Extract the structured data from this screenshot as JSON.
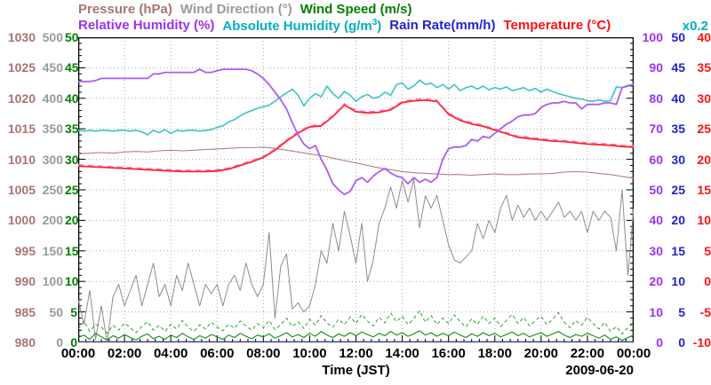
{
  "header": {
    "row1": [
      {
        "parts": [
          {
            "t": "Pressure (hPa)"
          }
        ],
        "color": "#A87474"
      },
      {
        "parts": [
          {
            "t": "Wind Direction (°)"
          }
        ],
        "color": "#9A9A9A"
      },
      {
        "parts": [
          {
            "t": "Wind Speed (m/s)"
          }
        ],
        "color": "#008000"
      }
    ],
    "row2": [
      {
        "parts": [
          {
            "t": "Relative Humidity (%)"
          }
        ],
        "color": "#9933EE"
      },
      {
        "parts": [
          {
            "t": "Absolute Humidity (g/m"
          },
          {
            "t": "3",
            "sup": true
          },
          {
            "t": ")"
          }
        ],
        "color": "#00AFC0"
      },
      {
        "parts": [
          {
            "t": "Rain Rate(mm/h)"
          }
        ],
        "color": "#2222CC"
      },
      {
        "parts": [
          {
            "t": "Temperature (°C)"
          }
        ],
        "color": "#FF1111"
      }
    ],
    "scale_note": {
      "text": "x0.2",
      "color": "#00AFC0"
    }
  },
  "chart_data": {
    "type": "line",
    "title": "",
    "x_label": "Time (JST)",
    "date_label": "2009-06-20",
    "x_unit": "hours",
    "x_range": [
      0,
      24
    ],
    "grid": "dotted",
    "x_tick_labels": [
      "00:00",
      "02:00",
      "04:00",
      "06:00",
      "08:00",
      "10:00",
      "12:00",
      "14:00",
      "16:00",
      "18:00",
      "20:00",
      "22:00",
      "00:00"
    ],
    "left_axes": [
      {
        "name": "pressure-hpa",
        "color": "#A87474",
        "labels": [
          "1030",
          "1025",
          "1020",
          "1015",
          "1010",
          "1005",
          "1000",
          "995",
          "990",
          "985",
          "980"
        ]
      },
      {
        "name": "wind-direction-deg",
        "color": "#9A9A9A",
        "labels": [
          "500",
          "450",
          "400",
          "350",
          "300",
          "250",
          "200",
          "150",
          "100",
          "50",
          "0"
        ]
      },
      {
        "name": "wind-speed-ms",
        "color": "#008000",
        "labels": [
          "50",
          "45",
          "40",
          "35",
          "30",
          "25",
          "20",
          "15",
          "10",
          "5",
          "0"
        ]
      }
    ],
    "right_axes": [
      {
        "name": "relative-humidity-pct",
        "color": "#9933EE",
        "labels": [
          "100",
          "90",
          "80",
          "70",
          "60",
          "50",
          "40",
          "30",
          "20",
          "10",
          "0"
        ]
      },
      {
        "name": "rain-rate-mmh",
        "color": "#2222CC",
        "labels": [
          "50",
          "45",
          "40",
          "35",
          "30",
          "25",
          "20",
          "15",
          "10",
          "5",
          "0"
        ]
      },
      {
        "name": "temperature-c",
        "color": "#FF1111",
        "labels": [
          "40",
          "35",
          "30",
          "25",
          "20",
          "15",
          "10",
          "5",
          "0",
          "-5",
          "-10"
        ]
      }
    ],
    "abs_humidity_scale_note": "x0.2",
    "series": [
      {
        "name": "wind-direction",
        "unit": "deg",
        "color": "#8C8C8C",
        "width": 1,
        "range": [
          0,
          500
        ],
        "x_start": 0,
        "x_step": 0.25,
        "v": [
          70,
          30,
          85,
          5,
          60,
          0,
          75,
          95,
          60,
          85,
          110,
          60,
          95,
          130,
          75,
          95,
          60,
          110,
          85,
          130,
          95,
          60,
          95,
          80,
          95,
          60,
          95,
          110,
          85,
          130,
          95,
          75,
          95,
          180,
          40,
          125,
          145,
          55,
          65,
          50,
          60,
          95,
          150,
          130,
          195,
          150,
          215,
          175,
          130,
          195,
          100,
          135,
          195,
          220,
          255,
          220,
          265,
          230,
          267,
          188,
          240,
          220,
          241,
          200,
          160,
          135,
          130,
          140,
          150,
          195,
          170,
          200,
          180,
          220,
          241,
          200,
          225,
          205,
          220,
          200,
          215,
          200,
          215,
          230,
          205,
          215,
          200,
          215,
          180,
          215,
          200,
          215,
          205,
          150,
          250,
          110,
          220
        ]
      },
      {
        "name": "wind-speed-max",
        "unit": "m/s",
        "color": "#2FA02F",
        "width": 1,
        "dash": "4,3",
        "range": [
          0,
          50
        ],
        "x_start": 0,
        "x_step": 0.25,
        "v": [
          2.2,
          3.5,
          1.8,
          3.0,
          2.5,
          1.5,
          2.8,
          2.0,
          3.2,
          2.4,
          1.6,
          2.6,
          3.4,
          2.0,
          2.8,
          1.8,
          3.0,
          2.2,
          3.6,
          2.5,
          1.8,
          2.9,
          2.2,
          3.3,
          2.5,
          1.9,
          3.0,
          2.3,
          3.5,
          2.7,
          2.0,
          3.1,
          2.4,
          3.6,
          2.1,
          2.9,
          4.0,
          2.6,
          3.4,
          2.3,
          3.8,
          2.8,
          4.4,
          3.2,
          2.5,
          3.8,
          2.9,
          4.2,
          3.1,
          4.6,
          3.5,
          2.7,
          4.1,
          3.2,
          4.8,
          3.4,
          4.3,
          2.9,
          3.9,
          5.2,
          3.3,
          4.4,
          2.9,
          4.0,
          3.1,
          4.5,
          3.4,
          2.5,
          3.9,
          2.9,
          4.3,
          3.1,
          4.0,
          2.6,
          3.6,
          4.6,
          3.1,
          4.1,
          2.7,
          3.6,
          4.3,
          2.9,
          3.8,
          4.9,
          3.3,
          2.4,
          3.6,
          2.8,
          4.1,
          3.1,
          2.2,
          3.3,
          1.8,
          2.6,
          1.4,
          2.4,
          3.2
        ]
      },
      {
        "name": "wind-speed",
        "unit": "m/s",
        "color": "#0F8A0F",
        "width": 1.1,
        "range": [
          0,
          50
        ],
        "x_start": 0,
        "x_step": 0.25,
        "v": [
          0.8,
          1.2,
          0.5,
          1.5,
          0.9,
          0.4,
          1.1,
          0.7,
          1.3,
          0.8,
          0.4,
          1.0,
          1.4,
          0.6,
          1.0,
          0.5,
          1.2,
          0.8,
          1.5,
          0.9,
          0.5,
          1.1,
          0.7,
          1.3,
          0.9,
          0.5,
          1.2,
          0.8,
          1.5,
          1.0,
          0.6,
          1.2,
          0.9,
          1.4,
          0.7,
          1.1,
          1.6,
          0.9,
          1.3,
          0.8,
          1.5,
          1.0,
          1.8,
          1.2,
          0.8,
          1.4,
          1.0,
          1.6,
          1.1,
          1.7,
          1.3,
          0.9,
          1.5,
          1.1,
          1.8,
          1.2,
          1.6,
          1.0,
          1.4,
          1.9,
          1.2,
          1.6,
          1.0,
          1.5,
          1.1,
          1.7,
          1.2,
          0.8,
          1.4,
          1.0,
          1.6,
          1.1,
          1.5,
          0.9,
          1.3,
          1.7,
          1.1,
          1.5,
          0.9,
          1.3,
          1.6,
          1.0,
          1.4,
          1.8,
          1.2,
          0.8,
          1.3,
          1.0,
          1.5,
          1.1,
          0.7,
          1.2,
          0.5,
          0.9,
          0.3,
          0.8,
          1.2
        ]
      },
      {
        "name": "pressure",
        "unit": "hPa",
        "color": "#B08080",
        "width": 1.1,
        "range": [
          980,
          1030
        ],
        "x_start": 0,
        "x_step": 0.5,
        "v": [
          1010.9,
          1011.0,
          1011.1,
          1011.0,
          1011.2,
          1011.3,
          1011.2,
          1011.4,
          1011.5,
          1011.4,
          1011.5,
          1011.6,
          1011.7,
          1011.8,
          1011.9,
          1011.9,
          1012.0,
          1011.8,
          1011.5,
          1011.2,
          1010.9,
          1010.6,
          1010.2,
          1009.8,
          1009.4,
          1009.0,
          1008.6,
          1008.3,
          1008.0,
          1007.8,
          1007.7,
          1007.6,
          1007.5,
          1007.5,
          1007.4,
          1007.5,
          1007.6,
          1007.5,
          1007.5,
          1007.6,
          1007.6,
          1007.7,
          1007.9,
          1008.0,
          1007.9,
          1007.7,
          1007.5,
          1007.2,
          1006.9
        ]
      },
      {
        "name": "rain-rate",
        "unit": "mm/h",
        "color": "#4444C8",
        "width": 1.6,
        "range": [
          0,
          50
        ],
        "x": [
          0,
          24
        ],
        "v": [
          0,
          0
        ]
      },
      {
        "name": "absolute-humidity",
        "unit": "g/m3",
        "color": "#3CC3C8",
        "width": 1.6,
        "range": [
          0,
          20
        ],
        "x_start": 0,
        "x_step": 0.25,
        "v": [
          13.9,
          13.85,
          13.9,
          13.85,
          13.9,
          13.9,
          13.85,
          13.9,
          13.9,
          13.85,
          13.9,
          13.8,
          13.6,
          13.9,
          13.75,
          13.95,
          13.7,
          13.9,
          13.85,
          13.9,
          13.9,
          13.85,
          13.9,
          13.95,
          14.1,
          14.2,
          14.45,
          14.6,
          14.85,
          15.05,
          15.2,
          15.35,
          15.45,
          15.55,
          15.8,
          16.1,
          16.35,
          16.6,
          16.2,
          15.5,
          16.0,
          16.3,
          16.1,
          16.8,
          16.3,
          16.0,
          16.45,
          16.2,
          15.8,
          16.1,
          16.25,
          16.0,
          16.1,
          16.4,
          16.2,
          16.9,
          17.0,
          16.6,
          16.8,
          17.2,
          16.9,
          17.0,
          16.7,
          16.9,
          16.6,
          16.9,
          16.5,
          16.7,
          16.8,
          16.6,
          16.8,
          16.55,
          16.7,
          16.6,
          16.75,
          16.5,
          16.6,
          16.7,
          16.5,
          16.65,
          16.4,
          16.6,
          16.45,
          16.3,
          16.2,
          16.1,
          16.0,
          15.95,
          15.85,
          15.8,
          15.9,
          15.8,
          15.85,
          16.75,
          16.7,
          16.85,
          16.9
        ]
      },
      {
        "name": "temperature",
        "unit": "C",
        "color": "#FF2222",
        "width": 1.8,
        "range": [
          -10,
          40
        ],
        "x_start": 0,
        "x_step": 0.5,
        "v": [
          18.9,
          18.8,
          18.7,
          18.6,
          18.5,
          18.4,
          18.3,
          18.2,
          18.1,
          18.0,
          18.0,
          18.0,
          18.1,
          18.4,
          19.0,
          19.6,
          20.3,
          21.5,
          23.0,
          24.3,
          25.3,
          25.5,
          27.0,
          28.9,
          27.8,
          27.6,
          27.7,
          28.1,
          29.3,
          29.6,
          29.7,
          29.5,
          27.4,
          26.4,
          25.8,
          25.4,
          24.8,
          24.2,
          23.6,
          23.4,
          23.2,
          23.0,
          22.9,
          22.7,
          22.5,
          22.4,
          22.3,
          22.1,
          22.0
        ]
      },
      {
        "name": "temperature-2",
        "unit": "C",
        "color": "#FF66BB",
        "width": 1.4,
        "dash": "6,5",
        "range": [
          -10,
          40
        ],
        "x_start": 0,
        "x_step": 0.5,
        "v": [
          19.1,
          19.0,
          18.9,
          18.8,
          18.7,
          18.6,
          18.5,
          18.4,
          18.3,
          18.2,
          18.2,
          18.2,
          18.3,
          18.6,
          19.2,
          19.8,
          20.5,
          21.7,
          23.2,
          24.5,
          25.5,
          25.7,
          27.2,
          29.1,
          28.0,
          27.8,
          27.9,
          28.3,
          29.5,
          29.8,
          29.9,
          29.7,
          27.6,
          26.6,
          26.0,
          25.6,
          25.0,
          24.4,
          23.8,
          23.6,
          23.4,
          23.2,
          23.1,
          22.9,
          22.7,
          22.6,
          22.5,
          22.3,
          22.2
        ]
      },
      {
        "name": "relative-humidity",
        "unit": "%",
        "color": "#AE5AF5",
        "width": 1.8,
        "range": [
          0,
          100
        ],
        "x_start": 0,
        "x_step": 0.25,
        "v": [
          85.5,
          85.5,
          85.5,
          85.8,
          86.5,
          86.5,
          86.5,
          86.5,
          86.5,
          86.5,
          86.5,
          86.5,
          86.5,
          88,
          88,
          88.5,
          88.5,
          88.5,
          88.5,
          88.5,
          88.5,
          89.5,
          88.5,
          88.5,
          89,
          89.5,
          89.5,
          89.5,
          89.5,
          89.5,
          89,
          88,
          86.5,
          84.5,
          82,
          79.5,
          76.5,
          72,
          68,
          65,
          63.5,
          64.5,
          60,
          56.5,
          52,
          50,
          48.5,
          49.5,
          53,
          54,
          52.5,
          54.5,
          56,
          57,
          55.5,
          54.5,
          54,
          52,
          54,
          52.5,
          53.5,
          52.5,
          54,
          60,
          63.5,
          64,
          64,
          64.5,
          66.5,
          66,
          67.5,
          67,
          68.5,
          70,
          71.5,
          72.5,
          74,
          74.5,
          74.5,
          75,
          77,
          78,
          78.5,
          78.5,
          79,
          78.5,
          78.5,
          76.5,
          78,
          78,
          78,
          78.5,
          78.5,
          78,
          83.5,
          84,
          84.5
        ]
      }
    ]
  }
}
